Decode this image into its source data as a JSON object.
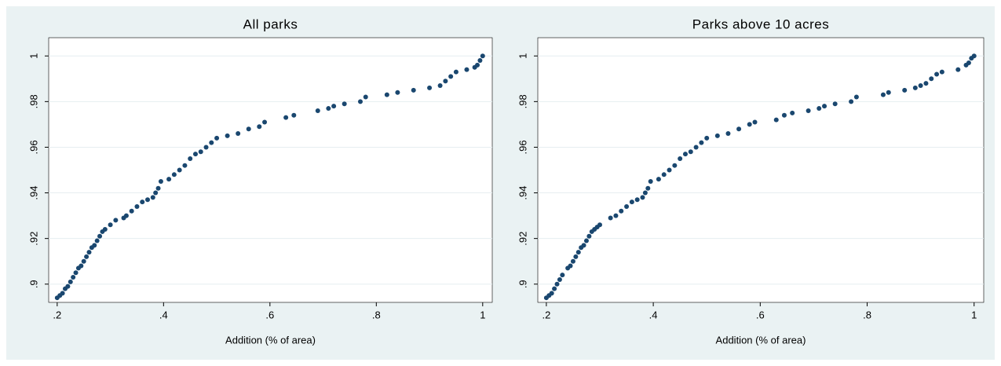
{
  "chart_data": [
    {
      "type": "scatter",
      "title": "All parks",
      "x_label": "Addition (% of area)",
      "color": "#1a476f",
      "grid": true,
      "x": [
        0.2,
        0.205,
        0.21,
        0.215,
        0.22,
        0.225,
        0.23,
        0.235,
        0.24,
        0.245,
        0.25,
        0.255,
        0.26,
        0.265,
        0.27,
        0.275,
        0.28,
        0.285,
        0.29,
        0.3,
        0.31,
        0.325,
        0.33,
        0.34,
        0.35,
        0.36,
        0.37,
        0.38,
        0.385,
        0.39,
        0.395,
        0.41,
        0.42,
        0.43,
        0.44,
        0.45,
        0.46,
        0.47,
        0.48,
        0.49,
        0.5,
        0.52,
        0.54,
        0.56,
        0.58,
        0.59,
        0.63,
        0.645,
        0.69,
        0.71,
        0.72,
        0.74,
        0.77,
        0.78,
        0.82,
        0.84,
        0.87,
        0.9,
        0.92,
        0.93,
        0.94,
        0.95,
        0.97,
        0.985,
        0.99,
        0.995,
        1.0
      ],
      "values": [
        0.894,
        0.895,
        0.896,
        0.898,
        0.899,
        0.901,
        0.903,
        0.905,
        0.907,
        0.908,
        0.91,
        0.912,
        0.914,
        0.916,
        0.917,
        0.919,
        0.921,
        0.923,
        0.924,
        0.926,
        0.928,
        0.929,
        0.93,
        0.932,
        0.934,
        0.936,
        0.937,
        0.938,
        0.94,
        0.942,
        0.945,
        0.946,
        0.948,
        0.95,
        0.952,
        0.955,
        0.957,
        0.958,
        0.96,
        0.962,
        0.964,
        0.965,
        0.966,
        0.968,
        0.969,
        0.971,
        0.973,
        0.974,
        0.976,
        0.977,
        0.978,
        0.979,
        0.98,
        0.982,
        0.983,
        0.984,
        0.985,
        0.986,
        0.987,
        0.989,
        0.991,
        0.993,
        0.994,
        0.995,
        0.996,
        0.998,
        1.0
      ],
      "xlim": [
        0.184,
        1.018
      ],
      "ylim": [
        0.892,
        1.008
      ],
      "xticks": [
        {
          "value": 0.2,
          "label": ".2"
        },
        {
          "value": 0.4,
          "label": ".4"
        },
        {
          "value": 0.6,
          "label": ".6"
        },
        {
          "value": 0.8,
          "label": ".8"
        },
        1
      ],
      "yticks": [
        {
          "value": 0.9,
          "label": ".9"
        },
        {
          "value": 0.92,
          "label": ".92"
        },
        {
          "value": 0.94,
          "label": ".94"
        },
        {
          "value": 0.96,
          "label": ".96"
        },
        {
          "value": 0.98,
          "label": ".98"
        },
        1
      ]
    },
    {
      "type": "scatter",
      "title": "Parks above 10 acres",
      "x_label": "Addition (% of area)",
      "color": "#1a476f",
      "grid": true,
      "x": [
        0.2,
        0.205,
        0.21,
        0.215,
        0.22,
        0.225,
        0.23,
        0.24,
        0.245,
        0.25,
        0.255,
        0.26,
        0.265,
        0.27,
        0.275,
        0.28,
        0.285,
        0.29,
        0.295,
        0.3,
        0.32,
        0.33,
        0.34,
        0.35,
        0.36,
        0.37,
        0.38,
        0.385,
        0.39,
        0.395,
        0.41,
        0.42,
        0.43,
        0.44,
        0.45,
        0.46,
        0.47,
        0.48,
        0.49,
        0.5,
        0.52,
        0.54,
        0.56,
        0.58,
        0.59,
        0.63,
        0.645,
        0.66,
        0.69,
        0.71,
        0.72,
        0.74,
        0.77,
        0.78,
        0.83,
        0.84,
        0.87,
        0.89,
        0.9,
        0.91,
        0.92,
        0.93,
        0.94,
        0.97,
        0.985,
        0.99,
        0.995,
        1.0
      ],
      "values": [
        0.894,
        0.895,
        0.896,
        0.898,
        0.9,
        0.902,
        0.904,
        0.907,
        0.908,
        0.91,
        0.912,
        0.914,
        0.916,
        0.917,
        0.919,
        0.921,
        0.923,
        0.924,
        0.925,
        0.926,
        0.929,
        0.93,
        0.932,
        0.934,
        0.936,
        0.937,
        0.938,
        0.94,
        0.942,
        0.945,
        0.946,
        0.948,
        0.95,
        0.952,
        0.955,
        0.957,
        0.958,
        0.96,
        0.962,
        0.964,
        0.965,
        0.966,
        0.968,
        0.97,
        0.971,
        0.972,
        0.974,
        0.975,
        0.976,
        0.977,
        0.978,
        0.979,
        0.98,
        0.982,
        0.983,
        0.984,
        0.985,
        0.986,
        0.987,
        0.988,
        0.99,
        0.992,
        0.993,
        0.994,
        0.996,
        0.997,
        0.999,
        1.0
      ],
      "xlim": [
        0.184,
        1.018
      ],
      "ylim": [
        0.892,
        1.008
      ],
      "xticks": [
        {
          "value": 0.2,
          "label": ".2"
        },
        {
          "value": 0.4,
          "label": ".4"
        },
        {
          "value": 0.6,
          "label": ".6"
        },
        {
          "value": 0.8,
          "label": ".8"
        },
        1
      ],
      "yticks": [
        {
          "value": 0.9,
          "label": ".9"
        },
        {
          "value": 0.92,
          "label": ".92"
        },
        {
          "value": 0.94,
          "label": ".94"
        },
        {
          "value": 0.96,
          "label": ".96"
        },
        {
          "value": 0.98,
          "label": ".98"
        },
        1
      ]
    }
  ]
}
